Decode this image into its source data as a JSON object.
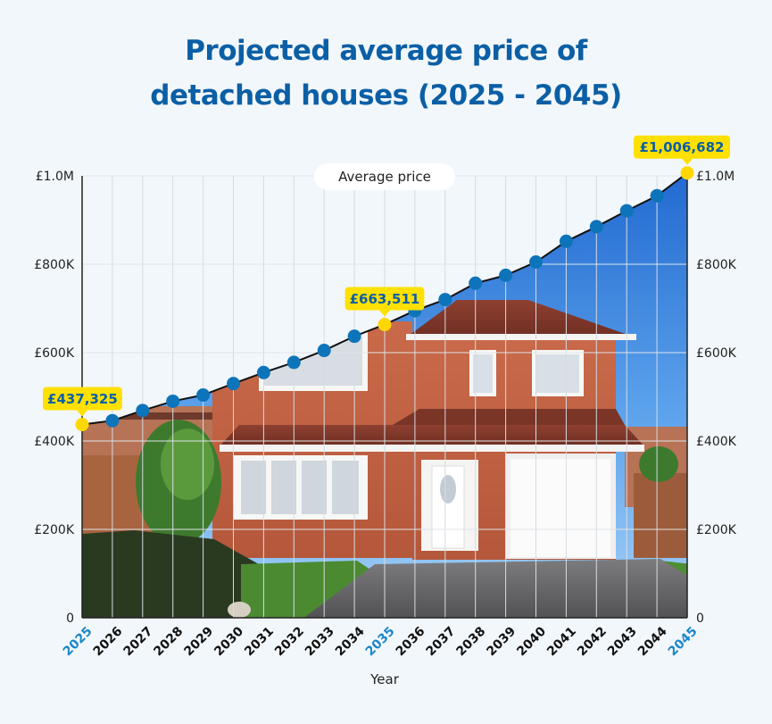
{
  "title_line1": "Projected average price of",
  "title_line2": "detached houses (2025 - 2045)",
  "colors": {
    "title": "#0b5fa5",
    "marker": "#0e74b9",
    "highlight_marker": "#ffd700",
    "highlight_tick": "#1a86c8",
    "sky_top": "#2f78d6",
    "sky_bottom": "#8fc2f2"
  },
  "chart_data": {
    "type": "line",
    "title": "Projected average price of detached houses (2025 - 2045)",
    "xlabel": "Year",
    "ylabel": "",
    "legend": "Average price",
    "legend_position": "top-center",
    "grid": true,
    "ylim": [
      0,
      1000000
    ],
    "yticks": [
      {
        "value": 0,
        "label": "0"
      },
      {
        "value": 200000,
        "label": "£200K"
      },
      {
        "value": 400000,
        "label": "£400K"
      },
      {
        "value": 600000,
        "label": "£600K"
      },
      {
        "value": 800000,
        "label": "£800K"
      },
      {
        "value": 1000000,
        "label": "£1.0M"
      }
    ],
    "x": [
      "2025",
      "2026",
      "2027",
      "2028",
      "2029",
      "2030",
      "2031",
      "2032",
      "2033",
      "2034",
      "2035",
      "2036",
      "2037",
      "2038",
      "2039",
      "2040",
      "2041",
      "2042",
      "2043",
      "2044",
      "2045"
    ],
    "series": [
      {
        "name": "Average price",
        "values": [
          437325,
          446000,
          469000,
          490000,
          504000,
          530000,
          555000,
          578000,
          605000,
          637000,
          663511,
          695000,
          720000,
          757000,
          775000,
          805000,
          852000,
          885000,
          921000,
          955000,
          1006682
        ]
      }
    ],
    "highlighted": [
      {
        "x": "2025",
        "label": "£437,325"
      },
      {
        "x": "2035",
        "label": "£663,511"
      },
      {
        "x": "2045",
        "label": "£1,006,682"
      }
    ]
  }
}
